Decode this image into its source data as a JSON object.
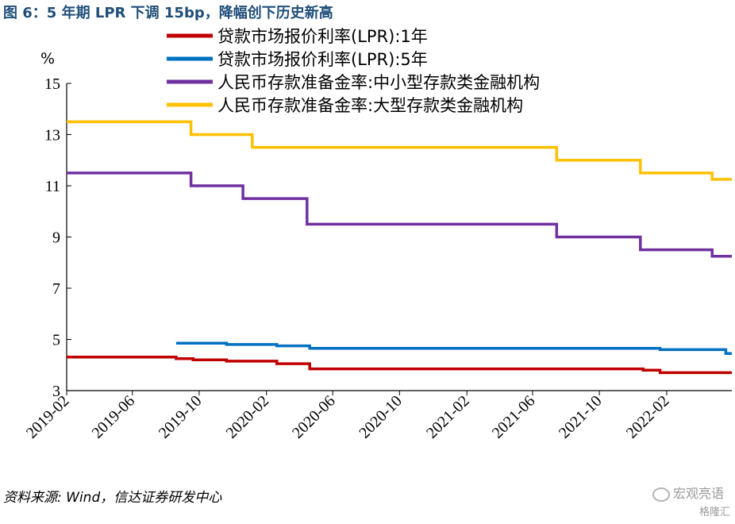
{
  "title": "图 6：5 年期 LPR 下调 15bp，降幅创下历史新高",
  "source": "资料来源: Wind，信达证券研发中心",
  "watermark": "宏观亮语",
  "watermark_icon": "wechat-icon",
  "watermark2": "格隆汇",
  "chart_data": {
    "type": "line",
    "unit_label": "%",
    "ylim": [
      3,
      15
    ],
    "yticks": [
      3,
      5,
      7,
      9,
      11,
      13,
      15
    ],
    "xlim": [
      "2019-02-01",
      "2022-05-31"
    ],
    "xticks": [
      "2019-02",
      "2019-06",
      "2019-10",
      "2020-02",
      "2020-06",
      "2020-10",
      "2021-02",
      "2021-06",
      "2021-10",
      "2022-02"
    ],
    "grid": false,
    "legend_position": "top",
    "series": [
      {
        "name": "贷款市场报价利率(LPR):1年",
        "color": "#c00000",
        "step": true,
        "x": [
          "2019-02-01",
          "2019-08-20",
          "2019-09-20",
          "2019-11-20",
          "2020-02-20",
          "2020-04-20",
          "2021-12-20",
          "2022-01-20",
          "2022-05-31"
        ],
        "y": [
          4.31,
          4.25,
          4.2,
          4.15,
          4.05,
          3.85,
          3.8,
          3.7,
          3.7
        ]
      },
      {
        "name": "贷款市场报价利率(LPR):5年",
        "color": "#0070c0",
        "step": true,
        "x": [
          "2019-08-20",
          "2019-11-20",
          "2020-02-20",
          "2020-04-20",
          "2022-01-20",
          "2022-05-20",
          "2022-05-31"
        ],
        "y": [
          4.85,
          4.8,
          4.75,
          4.65,
          4.6,
          4.45,
          4.45
        ]
      },
      {
        "name": "人民币存款准备金率:中小型存款类金融机构",
        "color": "#7030a0",
        "step": true,
        "x": [
          "2019-02-01",
          "2019-09-16",
          "2019-12-20",
          "2020-04-15",
          "2021-07-15",
          "2021-12-15",
          "2022-04-25",
          "2022-05-31"
        ],
        "y": [
          11.5,
          11.0,
          10.5,
          9.5,
          9.0,
          8.5,
          8.25,
          8.25
        ]
      },
      {
        "name": "人民币存款准备金率:大型存款类金融机构",
        "color": "#ffc000",
        "step": true,
        "x": [
          "2019-02-01",
          "2019-09-16",
          "2020-01-06",
          "2021-07-15",
          "2021-12-15",
          "2022-04-25",
          "2022-05-31"
        ],
        "y": [
          13.5,
          13.0,
          12.5,
          12.0,
          11.5,
          11.25,
          11.25
        ]
      }
    ]
  }
}
